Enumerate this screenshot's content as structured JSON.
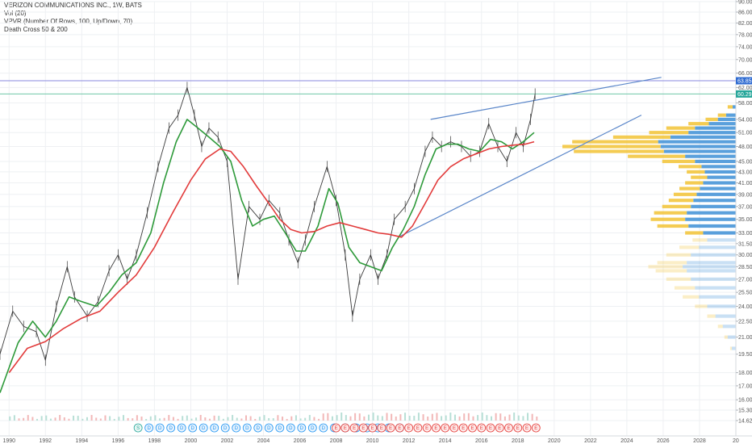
{
  "legend": {
    "title": "VERIZON COMMUNICATIONS INC., 1W, BATS",
    "volume": "Vol (20)",
    "vpvr": "VPVR (Number Of Rows, 100, Up/Down, 70)",
    "death_cross": "Death Cross 50 & 200"
  },
  "colors": {
    "grid": "#eef0f3",
    "price_series": "#3a3a3a",
    "ma50": "#2e9a3a",
    "ma200": "#e23b3b",
    "trendline": "#5a86c9",
    "hline": "#8a8adf",
    "hline2": "#6fc7a8",
    "vpvr_up": "#f2c335",
    "vpvr_down": "#3d8fd6",
    "label_blue": "#2f6bd1",
    "label_teal": "#26a69a"
  },
  "chart_data": {
    "type": "line",
    "y_scale": "log",
    "xlim": [
      1989.5,
      2030
    ],
    "ylim": [
      14.62,
      90
    ],
    "yticks": [
      "90.00",
      "86.00",
      "82.00",
      "78.00",
      "74.00",
      "70.00",
      "66.00",
      "62.00",
      "58.00",
      "54.00",
      "51.00",
      "48.00",
      "45.00",
      "43.00",
      "41.00",
      "39.00",
      "37.00",
      "35.00",
      "33.00",
      "31.50",
      "30.00",
      "28.50",
      "27.00",
      "25.50",
      "24.00",
      "22.50",
      "21.00",
      "19.50",
      "18.00",
      "17.00",
      "16.00",
      "15.30",
      "14.62"
    ],
    "xticks": [
      "1990",
      "1992",
      "1994",
      "1996",
      "1998",
      "2000",
      "2002",
      "2004",
      "2006",
      "2008",
      "2010",
      "2012",
      "2014",
      "2016",
      "2018",
      "2020",
      "2022",
      "2024",
      "2026",
      "2028",
      "20"
    ],
    "price_labels": [
      {
        "text": "63.85",
        "value": 63.85
      },
      {
        "text": "60.29",
        "value": 60.29
      }
    ],
    "series": [
      {
        "name": "price",
        "points": [
          [
            1989.5,
            19.5
          ],
          [
            1990.2,
            23.5
          ],
          [
            1990.8,
            22.0
          ],
          [
            1991.5,
            21.5
          ],
          [
            1992.0,
            19.0
          ],
          [
            1992.6,
            24.0
          ],
          [
            1993.2,
            28.5
          ],
          [
            1993.6,
            25.0
          ],
          [
            1994.3,
            23.0
          ],
          [
            1994.9,
            24.5
          ],
          [
            1995.5,
            28.0
          ],
          [
            1996.0,
            30.0
          ],
          [
            1996.5,
            27.0
          ],
          [
            1997.0,
            30.0
          ],
          [
            1997.6,
            36.0
          ],
          [
            1998.2,
            44.0
          ],
          [
            1998.8,
            52.0
          ],
          [
            1999.3,
            55.0
          ],
          [
            1999.8,
            62.0
          ],
          [
            2000.2,
            55.0
          ],
          [
            2000.6,
            48.0
          ],
          [
            2001.0,
            52.0
          ],
          [
            2001.5,
            50.0
          ],
          [
            2002.0,
            45.0
          ],
          [
            2002.6,
            27.0
          ],
          [
            2003.2,
            37.0
          ],
          [
            2003.8,
            35.0
          ],
          [
            2004.3,
            38.0
          ],
          [
            2004.9,
            36.0
          ],
          [
            2005.4,
            32.0
          ],
          [
            2005.9,
            29.0
          ],
          [
            2006.3,
            32.0
          ],
          [
            2006.8,
            37.0
          ],
          [
            2007.5,
            44.0
          ],
          [
            2008.0,
            38.0
          ],
          [
            2008.5,
            30.0
          ],
          [
            2008.9,
            23.0
          ],
          [
            2009.3,
            27.0
          ],
          [
            2009.9,
            30.0
          ],
          [
            2010.3,
            27.0
          ],
          [
            2010.8,
            30.0
          ],
          [
            2011.2,
            35.0
          ],
          [
            2011.8,
            37.0
          ],
          [
            2012.3,
            40.0
          ],
          [
            2012.9,
            47.0
          ],
          [
            2013.3,
            50.0
          ],
          [
            2013.8,
            48.0
          ],
          [
            2014.3,
            49.0
          ],
          [
            2014.9,
            48.0
          ],
          [
            2015.4,
            46.0
          ],
          [
            2015.9,
            47.0
          ],
          [
            2016.4,
            53.0
          ],
          [
            2016.9,
            48.0
          ],
          [
            2017.4,
            45.0
          ],
          [
            2017.9,
            51.0
          ],
          [
            2018.3,
            48.0
          ],
          [
            2018.7,
            54.0
          ],
          [
            2018.95,
            60.29
          ]
        ]
      },
      {
        "name": "MA 50",
        "points": [
          [
            1989.5,
            16.5
          ],
          [
            1990.5,
            20.5
          ],
          [
            1991.3,
            22.5
          ],
          [
            1992.0,
            21.0
          ],
          [
            1992.6,
            22.5
          ],
          [
            1993.3,
            25.0
          ],
          [
            1994.0,
            24.5
          ],
          [
            1994.8,
            24.0
          ],
          [
            1995.5,
            25.5
          ],
          [
            1996.2,
            27.5
          ],
          [
            1997.0,
            29.0
          ],
          [
            1997.8,
            33.0
          ],
          [
            1998.5,
            41.0
          ],
          [
            1999.2,
            49.0
          ],
          [
            1999.8,
            54.0
          ],
          [
            2000.4,
            52.0
          ],
          [
            2001.0,
            50.0
          ],
          [
            2001.6,
            48.0
          ],
          [
            2002.2,
            45.0
          ],
          [
            2002.8,
            38.0
          ],
          [
            2003.4,
            34.0
          ],
          [
            2004.0,
            35.0
          ],
          [
            2004.6,
            35.5
          ],
          [
            2005.2,
            33.0
          ],
          [
            2005.8,
            30.5
          ],
          [
            2006.3,
            30.5
          ],
          [
            2007.0,
            34.0
          ],
          [
            2007.6,
            40.0
          ],
          [
            2008.1,
            37.5
          ],
          [
            2008.7,
            31.0
          ],
          [
            2009.3,
            29.0
          ],
          [
            2009.9,
            28.5
          ],
          [
            2010.5,
            28.0
          ],
          [
            2011.1,
            31.0
          ],
          [
            2011.7,
            33.5
          ],
          [
            2012.3,
            37.0
          ],
          [
            2012.9,
            42.5
          ],
          [
            2013.5,
            47.5
          ],
          [
            2014.1,
            48.5
          ],
          [
            2014.7,
            48.5
          ],
          [
            2015.3,
            47.5
          ],
          [
            2015.9,
            47.0
          ],
          [
            2016.5,
            49.5
          ],
          [
            2017.1,
            49.0
          ],
          [
            2017.7,
            47.5
          ],
          [
            2018.3,
            49.0
          ],
          [
            2018.9,
            51.0
          ]
        ]
      },
      {
        "name": "MA 200",
        "points": [
          [
            1990.0,
            18.0
          ],
          [
            1991.0,
            20.0
          ],
          [
            1992.0,
            20.6
          ],
          [
            1993.0,
            21.8
          ],
          [
            1994.0,
            22.8
          ],
          [
            1995.0,
            23.5
          ],
          [
            1996.0,
            25.5
          ],
          [
            1997.0,
            27.5
          ],
          [
            1998.0,
            31.0
          ],
          [
            1999.0,
            36.0
          ],
          [
            2000.0,
            41.5
          ],
          [
            2000.8,
            45.5
          ],
          [
            2001.6,
            47.5
          ],
          [
            2002.2,
            47.0
          ],
          [
            2002.9,
            44.0
          ],
          [
            2003.6,
            40.5
          ],
          [
            2004.3,
            37.5
          ],
          [
            2004.9,
            35.0
          ],
          [
            2005.5,
            33.5
          ],
          [
            2006.1,
            33.0
          ],
          [
            2006.8,
            33.2
          ],
          [
            2007.5,
            34.0
          ],
          [
            2008.2,
            34.5
          ],
          [
            2008.9,
            34.0
          ],
          [
            2009.6,
            33.5
          ],
          [
            2010.3,
            33.0
          ],
          [
            2010.9,
            32.8
          ],
          [
            2011.6,
            32.4
          ],
          [
            2012.2,
            34.0
          ],
          [
            2012.9,
            37.5
          ],
          [
            2013.6,
            41.5
          ],
          [
            2014.3,
            44.0
          ],
          [
            2015.0,
            45.5
          ],
          [
            2015.7,
            46.5
          ],
          [
            2016.4,
            47.5
          ],
          [
            2017.1,
            48.0
          ],
          [
            2017.8,
            48.3
          ],
          [
            2018.4,
            48.5
          ],
          [
            2018.9,
            49.0
          ]
        ]
      }
    ],
    "trendlines": [
      {
        "from": [
          2013.2,
          54.0
        ],
        "to": [
          2025.9,
          64.8
        ]
      },
      {
        "from": [
          2011.5,
          32.5
        ],
        "to": [
          2024.8,
          55.0
        ]
      }
    ],
    "hlines": [
      63.85,
      60.29
    ],
    "vpvr": {
      "rows": [
        {
          "price": 57.0,
          "up": 6,
          "down": 4
        },
        {
          "price": 55.0,
          "up": 10,
          "down": 12
        },
        {
          "price": 54.0,
          "up": 15,
          "down": 22
        },
        {
          "price": 53.0,
          "up": 25,
          "down": 33
        },
        {
          "price": 52.0,
          "up": 35,
          "down": 50
        },
        {
          "price": 51.0,
          "up": 48,
          "down": 58
        },
        {
          "price": 50.0,
          "up": 70,
          "down": 80
        },
        {
          "price": 49.0,
          "up": 105,
          "down": 95
        },
        {
          "price": 48.0,
          "up": 120,
          "down": 92
        },
        {
          "price": 47.0,
          "up": 110,
          "down": 88
        },
        {
          "price": 46.0,
          "up": 70,
          "down": 62
        },
        {
          "price": 45.0,
          "up": 40,
          "down": 50
        },
        {
          "price": 44.0,
          "up": 28,
          "down": 42
        },
        {
          "price": 43.0,
          "up": 22,
          "down": 38
        },
        {
          "price": 42.0,
          "up": 20,
          "down": 35
        },
        {
          "price": 41.0,
          "up": 22,
          "down": 40
        },
        {
          "price": 40.0,
          "up": 25,
          "down": 44
        },
        {
          "price": 39.0,
          "up": 28,
          "down": 48
        },
        {
          "price": 38.0,
          "up": 30,
          "down": 52
        },
        {
          "price": 37.0,
          "up": 35,
          "down": 55
        },
        {
          "price": 36.0,
          "up": 40,
          "down": 60
        },
        {
          "price": 35.0,
          "up": 42,
          "down": 62
        },
        {
          "price": 34.0,
          "up": 38,
          "down": 58
        },
        {
          "price": 33.0,
          "up": 22,
          "down": 40
        },
        {
          "price": 32.0,
          "up": 18,
          "down": 35
        },
        {
          "price": 31.0,
          "up": 24,
          "down": 45
        },
        {
          "price": 30.0,
          "up": 30,
          "down": 55
        },
        {
          "price": 29.0,
          "up": 36,
          "down": 60
        },
        {
          "price": 28.5,
          "up": 42,
          "down": 65
        },
        {
          "price": 28.0,
          "up": 38,
          "down": 60
        },
        {
          "price": 27.0,
          "up": 30,
          "down": 55
        },
        {
          "price": 26.0,
          "up": 25,
          "down": 50
        },
        {
          "price": 25.0,
          "up": 20,
          "down": 45
        },
        {
          "price": 24.0,
          "up": 15,
          "down": 35
        },
        {
          "price": 23.0,
          "up": 10,
          "down": 25
        },
        {
          "price": 22.0,
          "up": 6,
          "down": 16
        },
        {
          "price": 21.0,
          "up": 4,
          "down": 10
        },
        {
          "price": 20.0,
          "up": 2,
          "down": 5
        }
      ]
    },
    "events": {
      "split": {
        "letter": "S",
        "x": 1997.1
      },
      "dividends": {
        "letter": "D",
        "xs": [
          1997.7,
          1998.3,
          1998.9,
          1999.5,
          2000.1,
          2000.7,
          2001.3,
          2001.9,
          2002.5,
          2003.1,
          2003.7,
          2004.3,
          2004.9,
          2005.5,
          2006.1,
          2006.7,
          2007.3,
          2007.9,
          2008.5,
          2009.1,
          2009.7,
          2010.3,
          2010.9,
          2011.5
        ]
      },
      "earnings": {
        "letter": "E",
        "xs": [
          2008.0,
          2008.5,
          2009.0,
          2009.5,
          2010.0,
          2010.5,
          2011.0,
          2011.5,
          2012.0,
          2012.5,
          2013.0,
          2013.5,
          2014.0,
          2014.5,
          2015.0,
          2015.5,
          2016.0,
          2016.5,
          2017.0,
          2017.5,
          2018.0,
          2018.5,
          2019.0
        ]
      }
    }
  }
}
